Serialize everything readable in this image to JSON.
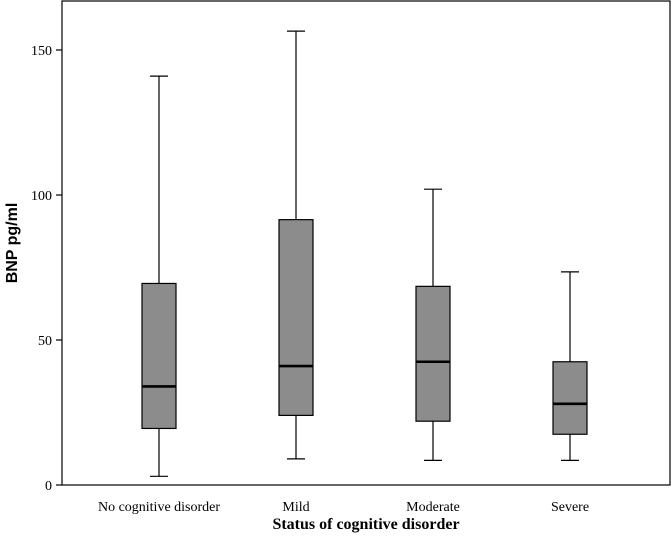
{
  "chart_data": {
    "type": "boxplot",
    "xlabel": "Status of cognitive disorder",
    "ylabel": "BNP pg/ml",
    "ylim": [
      0,
      167
    ],
    "yticks": [
      0,
      50,
      100,
      150
    ],
    "grid": false,
    "box_color": "#8c8c8c",
    "categories": [
      "No cognitive disorder",
      "Mild",
      "Moderate",
      "Severe"
    ],
    "boxes": [
      {
        "whisker_low": 3,
        "q1": 19.5,
        "median": 34,
        "q3": 69.5,
        "whisker_high": 141
      },
      {
        "whisker_low": 9,
        "q1": 24,
        "median": 41,
        "q3": 91.5,
        "whisker_high": 156.5
      },
      {
        "whisker_low": 8.5,
        "q1": 22,
        "median": 42.5,
        "q3": 68.5,
        "whisker_high": 102
      },
      {
        "whisker_low": 8.5,
        "q1": 17.5,
        "median": 28,
        "q3": 42.5,
        "whisker_high": 73.5
      }
    ]
  }
}
